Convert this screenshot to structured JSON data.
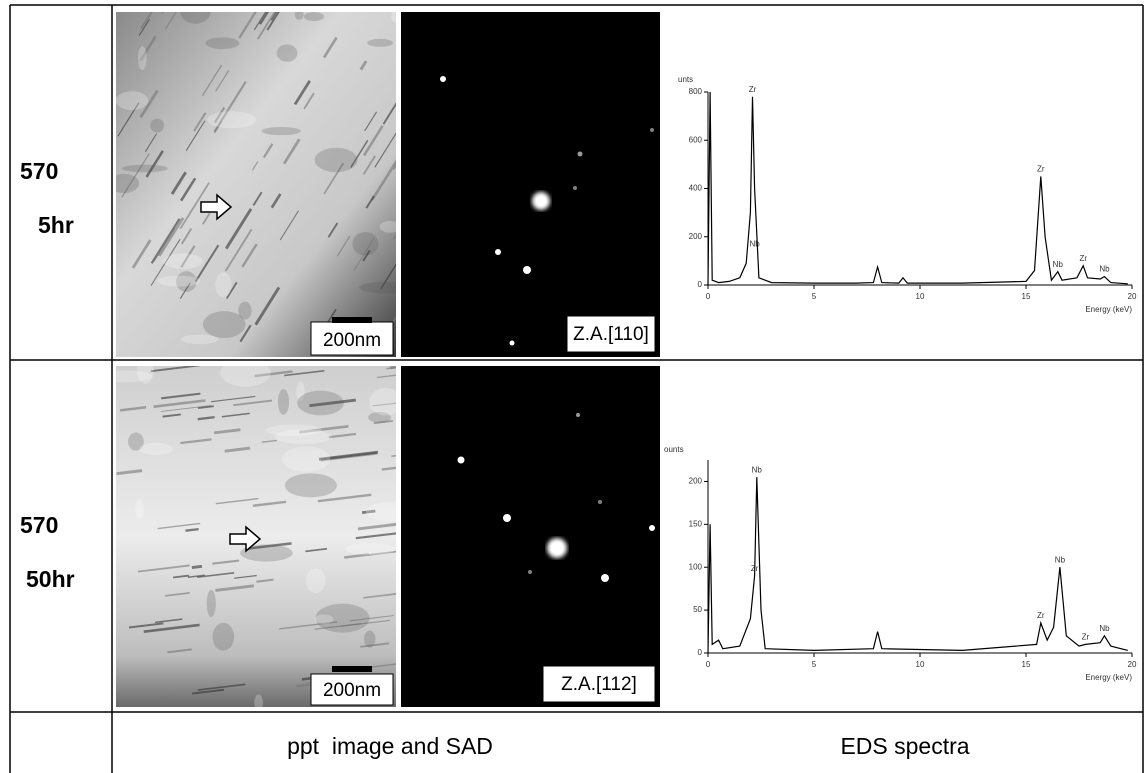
{
  "rows": [
    {
      "label": [
        "570",
        "5hr"
      ],
      "scale_bar": "200nm",
      "zone_axis": "Z.A.[110]",
      "spectrum": {
        "type": "line",
        "y_label": "unts",
        "x_label": "Energy (keV)",
        "xlim": [
          0,
          20
        ],
        "xticks": [
          0,
          5,
          10,
          15,
          20
        ],
        "ylim": [
          0,
          800
        ],
        "yticks": [
          0,
          200,
          400,
          600,
          800
        ],
        "x": [
          0,
          0.1,
          0.2,
          0.5,
          1,
          1.5,
          1.8,
          2.0,
          2.1,
          2.2,
          2.4,
          3,
          5,
          7,
          7.8,
          8.0,
          8.2,
          9,
          9.2,
          9.4,
          12,
          15,
          15.4,
          15.7,
          15.9,
          16.2,
          16.5,
          16.7,
          17.4,
          17.7,
          17.9,
          18.5,
          18.7,
          19,
          19.8
        ],
        "values": [
          0,
          800,
          20,
          10,
          15,
          30,
          90,
          300,
          780,
          400,
          30,
          10,
          8,
          8,
          10,
          75,
          10,
          8,
          30,
          8,
          8,
          15,
          60,
          450,
          200,
          20,
          55,
          20,
          30,
          80,
          30,
          25,
          35,
          10,
          5
        ],
        "annotations": [
          {
            "text": "Zr",
            "x": 2.1,
            "y": 780
          },
          {
            "text": "Nb",
            "x": 2.2,
            "y": 140
          },
          {
            "text": "Zr",
            "x": 15.7,
            "y": 450
          },
          {
            "text": "Nb",
            "x": 16.5,
            "y": 55
          },
          {
            "text": "Zr",
            "x": 17.7,
            "y": 80
          },
          {
            "text": "Nb",
            "x": 18.7,
            "y": 35
          }
        ]
      }
    },
    {
      "label": [
        "570",
        "50hr"
      ],
      "scale_bar": "200nm",
      "zone_axis": "Z.A.[112]",
      "spectrum": {
        "type": "line",
        "y_label": "ounts",
        "x_label": "Energy (keV)",
        "xlim": [
          0,
          20
        ],
        "xticks": [
          0,
          5,
          10,
          15,
          20
        ],
        "ylim": [
          0,
          225
        ],
        "yticks": [
          0,
          50,
          100,
          150,
          200
        ],
        "x": [
          0,
          0.1,
          0.2,
          0.5,
          0.7,
          1.5,
          2.0,
          2.2,
          2.3,
          2.5,
          2.7,
          5,
          7.8,
          8.0,
          8.2,
          12,
          15.5,
          15.7,
          16.0,
          16.3,
          16.6,
          16.9,
          17.5,
          17.8,
          18.5,
          18.7,
          19,
          19.8
        ],
        "values": [
          0,
          150,
          10,
          15,
          5,
          8,
          40,
          90,
          205,
          50,
          5,
          3,
          5,
          25,
          5,
          3,
          10,
          35,
          15,
          30,
          100,
          20,
          8,
          10,
          12,
          20,
          8,
          3
        ],
        "annotations": [
          {
            "text": "Nb",
            "x": 2.3,
            "y": 205
          },
          {
            "text": "Zr",
            "x": 2.2,
            "y": 90
          },
          {
            "text": "Zr",
            "x": 15.7,
            "y": 35
          },
          {
            "text": "Nb",
            "x": 16.6,
            "y": 100
          },
          {
            "text": "Zr",
            "x": 17.8,
            "y": 10
          },
          {
            "text": "Nb",
            "x": 18.7,
            "y": 20
          }
        ]
      }
    }
  ],
  "footer": [
    "ppt  image and SAD",
    "EDS spectra"
  ]
}
